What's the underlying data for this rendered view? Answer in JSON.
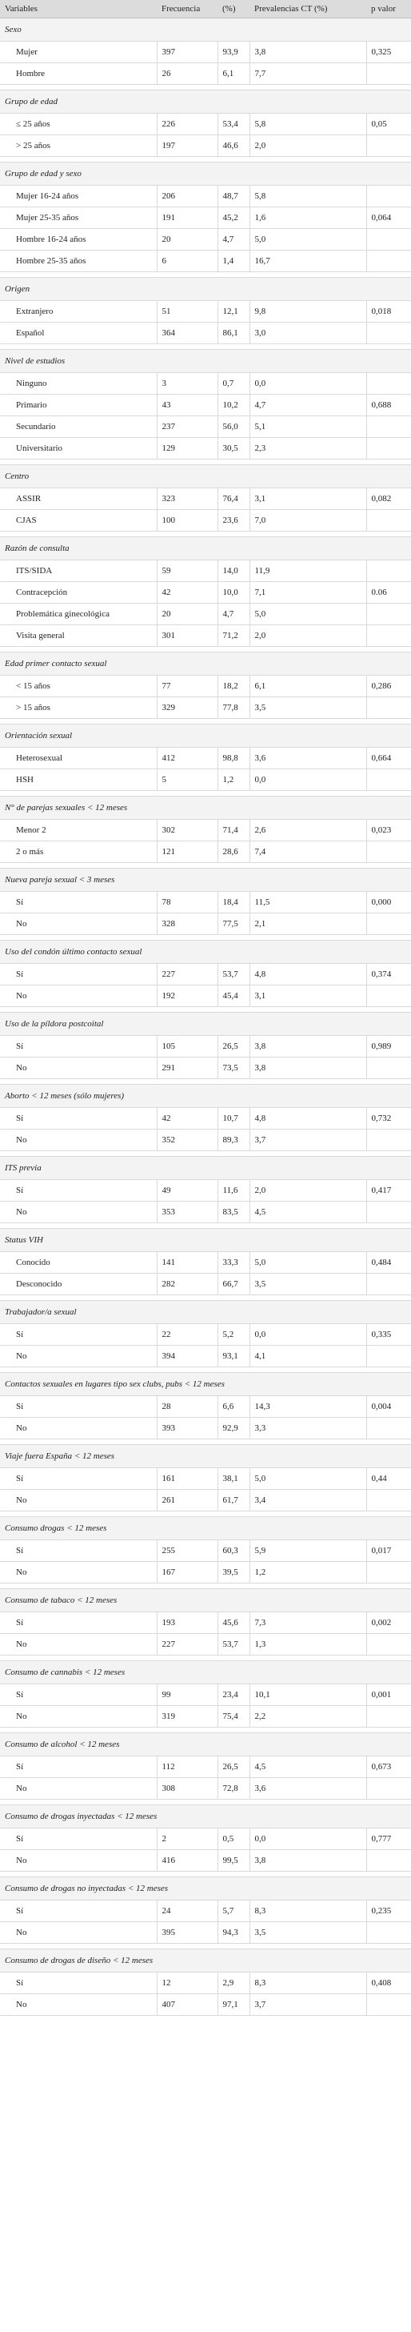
{
  "header": {
    "variables": "Variables",
    "frecuencia": "Frecuencia",
    "pct": "(%)",
    "prevalencias": "Prevalencias CT (%)",
    "pvalor": "p valor"
  },
  "groups": [
    {
      "title": "Sexo",
      "rows": [
        {
          "label": "Mujer",
          "freq": "397",
          "pct": "93,9",
          "prev": "3,8",
          "p": "0,325"
        },
        {
          "label": "Hombre",
          "freq": "26",
          "pct": "6,1",
          "prev": "7,7",
          "p": ""
        }
      ]
    },
    {
      "title": "Grupo de edad",
      "rows": [
        {
          "label": "≤ 25 años",
          "freq": "226",
          "pct": "53,4",
          "prev": "5,8",
          "p": "0,05"
        },
        {
          "label": "> 25 años",
          "freq": "197",
          "pct": "46,6",
          "prev": "2,0",
          "p": ""
        }
      ]
    },
    {
      "title": "Grupo de edad y sexo",
      "rows": [
        {
          "label": "Mujer 16-24 años",
          "freq": "206",
          "pct": "48,7",
          "prev": "5,8",
          "p": ""
        },
        {
          "label": "Mujer 25-35 años",
          "freq": "191",
          "pct": "45,2",
          "prev": "1,6",
          "p": "0,064"
        },
        {
          "label": "Hombre 16-24 años",
          "freq": "20",
          "pct": "4,7",
          "prev": "5,0",
          "p": ""
        },
        {
          "label": "Hombre 25-35 años",
          "freq": "6",
          "pct": "1,4",
          "prev": "16,7",
          "p": ""
        }
      ]
    },
    {
      "title": "Origen",
      "rows": [
        {
          "label": "Extranjero",
          "freq": "51",
          "pct": "12,1",
          "prev": "9,8",
          "p": "0,018"
        },
        {
          "label": "Español",
          "freq": "364",
          "pct": "86,1",
          "prev": "3,0",
          "p": ""
        }
      ]
    },
    {
      "title": "Nivel de estudios",
      "rows": [
        {
          "label": "Ninguno",
          "freq": "3",
          "pct": "0,7",
          "prev": "0,0",
          "p": ""
        },
        {
          "label": "Primario",
          "freq": "43",
          "pct": "10,2",
          "prev": "4,7",
          "p": "0,688"
        },
        {
          "label": "Secundario",
          "freq": "237",
          "pct": "56,0",
          "prev": "5,1",
          "p": ""
        },
        {
          "label": "Universitario",
          "freq": "129",
          "pct": "30,5",
          "prev": "2,3",
          "p": ""
        }
      ]
    },
    {
      "title": "Centro",
      "rows": [
        {
          "label": "ASSIR",
          "freq": "323",
          "pct": "76,4",
          "prev": "3,1",
          "p": "0,082"
        },
        {
          "label": "CJAS",
          "freq": "100",
          "pct": "23,6",
          "prev": "7,0",
          "p": ""
        }
      ]
    },
    {
      "title": "Razón de consulta",
      "rows": [
        {
          "label": "ITS/SIDA",
          "freq": "59",
          "pct": "14,0",
          "prev": "11,9",
          "p": ""
        },
        {
          "label": "Contracepción",
          "freq": "42",
          "pct": "10,0",
          "prev": "7,1",
          "p": "0.06"
        },
        {
          "label": "Problemática ginecológica",
          "freq": "20",
          "pct": "4,7",
          "prev": "5,0",
          "p": ""
        },
        {
          "label": "Visita general",
          "freq": "301",
          "pct": "71,2",
          "prev": "2,0",
          "p": ""
        }
      ]
    },
    {
      "title": "Edad primer contacto sexual",
      "rows": [
        {
          "label": "< 15 años",
          "freq": "77",
          "pct": "18,2",
          "prev": "6,1",
          "p": "0,286"
        },
        {
          "label": "> 15 años",
          "freq": "329",
          "pct": "77,8",
          "prev": "3,5",
          "p": ""
        }
      ]
    },
    {
      "title": "Orientación sexual",
      "rows": [
        {
          "label": "Heterosexual",
          "freq": "412",
          "pct": "98,8",
          "prev": "3,6",
          "p": "0,664"
        },
        {
          "label": "HSH",
          "freq": "5",
          "pct": "1,2",
          "prev": "0,0",
          "p": ""
        }
      ]
    },
    {
      "title": "N° de parejas sexuales < 12 meses",
      "rows": [
        {
          "label": "Menor 2",
          "freq": "302",
          "pct": "71,4",
          "prev": "2,6",
          "p": "0,023"
        },
        {
          "label": "2 o más",
          "freq": "121",
          "pct": "28,6",
          "prev": "7,4",
          "p": ""
        }
      ]
    },
    {
      "title": "Nueva pareja sexual < 3 meses",
      "rows": [
        {
          "label": "Sí",
          "freq": "78",
          "pct": "18,4",
          "prev": "11,5",
          "p": "0,000"
        },
        {
          "label": "No",
          "freq": "328",
          "pct": "77,5",
          "prev": "2,1",
          "p": ""
        }
      ]
    },
    {
      "title": "Uso del condón último contacto sexual",
      "rows": [
        {
          "label": "Sí",
          "freq": "227",
          "pct": "53,7",
          "prev": "4,8",
          "p": "0,374"
        },
        {
          "label": "No",
          "freq": "192",
          "pct": "45,4",
          "prev": "3,1",
          "p": ""
        }
      ]
    },
    {
      "title": "Uso de la píldora postcoital",
      "rows": [
        {
          "label": "Sí",
          "freq": "105",
          "pct": "26,5",
          "prev": "3,8",
          "p": "0,989"
        },
        {
          "label": "No",
          "freq": "291",
          "pct": "73,5",
          "prev": "3,8",
          "p": ""
        }
      ]
    },
    {
      "title": "Aborto < 12 meses (sólo mujeres)",
      "rows": [
        {
          "label": "Sí",
          "freq": "42",
          "pct": "10,7",
          "prev": "4,8",
          "p": "0,732"
        },
        {
          "label": "No",
          "freq": "352",
          "pct": "89,3",
          "prev": "3,7",
          "p": ""
        }
      ]
    },
    {
      "title": "ITS previa",
      "rows": [
        {
          "label": "Sí",
          "freq": "49",
          "pct": "11,6",
          "prev": "2,0",
          "p": "0,417"
        },
        {
          "label": "No",
          "freq": "353",
          "pct": "83,5",
          "prev": "4,5",
          "p": ""
        }
      ]
    },
    {
      "title": "Status VIH",
      "rows": [
        {
          "label": "Conocido",
          "freq": "141",
          "pct": "33,3",
          "prev": "5,0",
          "p": "0,484"
        },
        {
          "label": "Desconocido",
          "freq": "282",
          "pct": "66,7",
          "prev": "3,5",
          "p": ""
        }
      ]
    },
    {
      "title": "Trabajador/a sexual",
      "rows": [
        {
          "label": "Sí",
          "freq": "22",
          "pct": "5,2",
          "prev": "0,0",
          "p": "0,335"
        },
        {
          "label": "No",
          "freq": "394",
          "pct": "93,1",
          "prev": "4,1",
          "p": ""
        }
      ]
    },
    {
      "title": "Contactos sexuales en lugares tipo sex clubs, pubs < 12 meses",
      "rows": [
        {
          "label": "Sí",
          "freq": "28",
          "pct": "6,6",
          "prev": "14,3",
          "p": "0,004"
        },
        {
          "label": "No",
          "freq": "393",
          "pct": "92,9",
          "prev": "3,3",
          "p": ""
        }
      ]
    },
    {
      "title": "Viaje fuera España < 12 meses",
      "rows": [
        {
          "label": "Sí",
          "freq": "161",
          "pct": "38,1",
          "prev": "5,0",
          "p": "0,44"
        },
        {
          "label": "No",
          "freq": "261",
          "pct": "61,7",
          "prev": "3,4",
          "p": ""
        }
      ]
    },
    {
      "title": "Consumo drogas < 12 meses",
      "rows": [
        {
          "label": "Sí",
          "freq": "255",
          "pct": "60,3",
          "prev": "5,9",
          "p": "0,017"
        },
        {
          "label": "No",
          "freq": "167",
          "pct": "39,5",
          "prev": "1,2",
          "p": ""
        }
      ]
    },
    {
      "title": "Consumo de tabaco < 12 meses",
      "rows": [
        {
          "label": "Sí",
          "freq": "193",
          "pct": "45,6",
          "prev": "7,3",
          "p": "0,002"
        },
        {
          "label": "No",
          "freq": "227",
          "pct": "53,7",
          "prev": "1,3",
          "p": ""
        }
      ]
    },
    {
      "title": "Consumo de cannabis < 12 meses",
      "rows": [
        {
          "label": "Sí",
          "freq": "99",
          "pct": "23,4",
          "prev": "10,1",
          "p": "0,001"
        },
        {
          "label": "No",
          "freq": "319",
          "pct": "75,4",
          "prev": "2,2",
          "p": ""
        }
      ]
    },
    {
      "title": "Consumo de alcohol < 12 meses",
      "rows": [
        {
          "label": "Sí",
          "freq": "112",
          "pct": "26,5",
          "prev": "4,5",
          "p": "0,673"
        },
        {
          "label": "No",
          "freq": "308",
          "pct": "72,8",
          "prev": "3,6",
          "p": ""
        }
      ]
    },
    {
      "title": "Consumo de drogas inyectadas < 12 meses",
      "rows": [
        {
          "label": "Sí",
          "freq": "2",
          "pct": "0,5",
          "prev": "0,0",
          "p": "0,777"
        },
        {
          "label": "No",
          "freq": "416",
          "pct": "99,5",
          "prev": "3,8",
          "p": ""
        }
      ]
    },
    {
      "title": "Consumo de drogas no inyectadas < 12 meses",
      "rows": [
        {
          "label": "Sí",
          "freq": "24",
          "pct": "5,7",
          "prev": "8,3",
          "p": "0,235"
        },
        {
          "label": "No",
          "freq": "395",
          "pct": "94,3",
          "prev": "3,5",
          "p": ""
        }
      ]
    },
    {
      "title": "Consumo de drogas de diseño < 12 meses",
      "rows": [
        {
          "label": "Sí",
          "freq": "12",
          "pct": "2,9",
          "prev": "8,3",
          "p": "0,408"
        },
        {
          "label": "No",
          "freq": "407",
          "pct": "97,1",
          "prev": "3,7",
          "p": ""
        }
      ]
    }
  ]
}
